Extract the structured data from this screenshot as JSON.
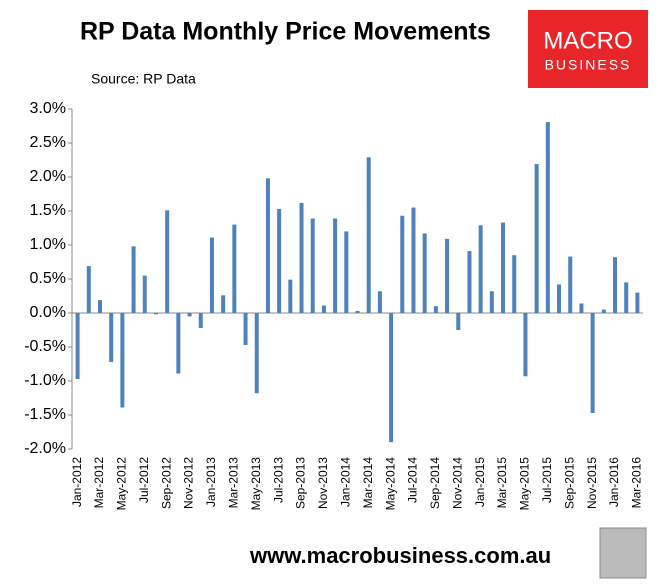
{
  "chart_data": {
    "type": "bar",
    "title": "RP Data Monthly Price Movements",
    "subtitle": "Source: RP Data",
    "categories": [
      "Jan-2012",
      null,
      "Mar-2012",
      null,
      "May-2012",
      null,
      "Jul-2012",
      null,
      "Sep-2012",
      null,
      "Nov-2012",
      null,
      "Jan-2013",
      null,
      "Mar-2013",
      null,
      "May-2013",
      null,
      "Jul-2013",
      null,
      "Sep-2013",
      null,
      "Nov-2013",
      null,
      "Jan-2014",
      null,
      "Mar-2014",
      null,
      "May-2014",
      null,
      "Jul-2014",
      null,
      "Sep-2014",
      null,
      "Nov-2014",
      null,
      "Jan-2015",
      null,
      "Mar-2015",
      null,
      "May-2015",
      null,
      "Jul-2015",
      null,
      "Sep-2015",
      null,
      "Nov-2015",
      null,
      "Jan-2016",
      null,
      "Mar-2016"
    ],
    "values": [
      -0.97,
      0.69,
      0.19,
      -0.72,
      -1.39,
      0.98,
      0.55,
      -0.02,
      1.51,
      -0.89,
      -0.05,
      -0.22,
      1.11,
      0.26,
      1.3,
      -0.47,
      -1.18,
      1.98,
      1.53,
      0.49,
      1.62,
      1.39,
      0.11,
      1.39,
      1.2,
      0.03,
      2.29,
      0.32,
      -1.9,
      1.43,
      1.55,
      1.17,
      0.1,
      1.09,
      -0.25,
      0.91,
      1.29,
      0.32,
      1.33,
      0.85,
      -0.93,
      2.19,
      2.81,
      0.42,
      0.83,
      0.14,
      -1.47,
      0.05,
      0.82,
      0.45,
      0.3
    ],
    "color": "#4f81bd",
    "ylim": [
      -2.0,
      3.0
    ],
    "yticks": [
      {
        "value": 3.0,
        "label": "3.0%"
      },
      {
        "value": 2.5,
        "label": "2.5%"
      },
      {
        "value": 2.0,
        "label": "2.0%"
      },
      {
        "value": 1.5,
        "label": "1.5%"
      },
      {
        "value": 1.0,
        "label": "1.0%"
      },
      {
        "value": 0.5,
        "label": "0.5%"
      },
      {
        "value": 0.0,
        "label": "0.0%"
      },
      {
        "value": -0.5,
        "label": "-0.5%"
      },
      {
        "value": -1.0,
        "label": "-1.0%"
      },
      {
        "value": -1.5,
        "label": "-1.5%"
      },
      {
        "value": -2.0,
        "label": "-2.0%"
      }
    ],
    "grid": false
  },
  "logo": {
    "line1": "MACRO",
    "line2": "BUSINESS"
  },
  "footer": "www.macrobusiness.com.au"
}
